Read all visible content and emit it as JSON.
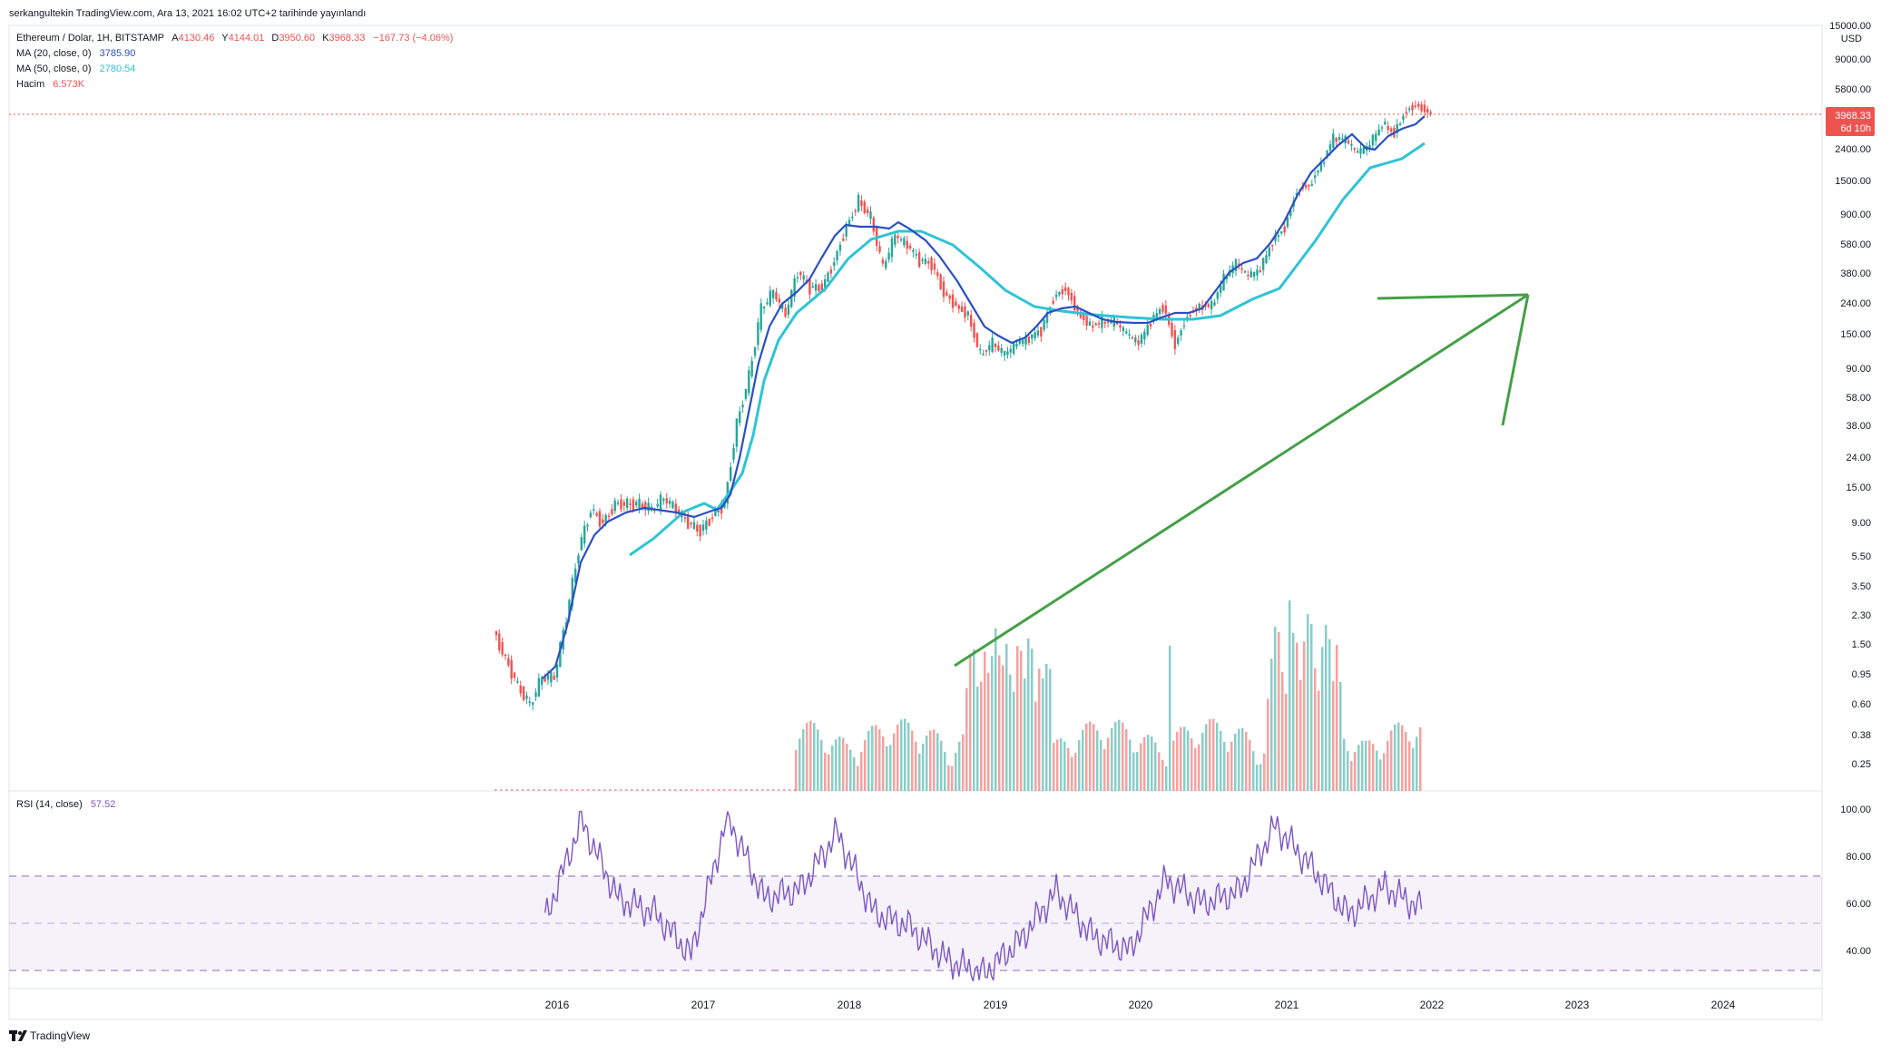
{
  "publish_line": "serkangultekin TradingView.com, Ara 13, 2021 16:02 UTC+2 tarihinde yayınlandı",
  "legend": {
    "symbol": "Ethereum / Dolar, 1H, BITSTAMP",
    "ohlc": [
      {
        "label": "A",
        "value": "4130.46"
      },
      {
        "label": "Y",
        "value": "4144.01"
      },
      {
        "label": "D",
        "value": "3950.60"
      },
      {
        "label": "K",
        "value": "3968.33"
      }
    ],
    "change": "−167.73 (−4.06%)",
    "ma20": {
      "label": "MA (20, close, 0)",
      "value": "3785.90"
    },
    "ma50": {
      "label": "MA (50, close, 0)",
      "value": "2780.54"
    },
    "volume": {
      "label": "Hacim",
      "value": "6.573K"
    }
  },
  "price_axis": {
    "currency": "USD",
    "ticks": [
      "15000.00",
      "9000.00",
      "5800.00",
      "2400.00",
      "1500.00",
      "900.00",
      "580.00",
      "380.00",
      "240.00",
      "150.00",
      "90.00",
      "58.00",
      "38.00",
      "24.00",
      "15.00",
      "9.00",
      "5.50",
      "3.50",
      "2.30",
      "1.50",
      "0.95",
      "0.60",
      "0.38",
      "0.25"
    ]
  },
  "last_price": {
    "value": "3968.33",
    "countdown": "6d 10h"
  },
  "rsi": {
    "label": "RSI (14, close)",
    "value": "57.52",
    "ticks": [
      "100.00",
      "80.00",
      "60.00",
      "40.00"
    ]
  },
  "time_axis": [
    "2016",
    "2017",
    "2018",
    "2019",
    "2020",
    "2021",
    "2022",
    "2023",
    "2024"
  ],
  "brand": "TradingView",
  "colors": {
    "up": "#26a69a",
    "down": "#ef5350",
    "ma20": "#2a4fc4",
    "ma50": "#2ec4d6",
    "rsi": "#7e57c2",
    "arrow": "#43a047",
    "last_price_bg": "#ef5350"
  },
  "chart_data": {
    "type": "candlestick",
    "scale": "log",
    "ylim": [
      0.2,
      16000
    ],
    "x_range": [
      "2015-08",
      "2024-09"
    ],
    "series": [
      {
        "name": "Ethereum / Dolar",
        "x": [
          "2015-08",
          "2015-09",
          "2015-10",
          "2015-11",
          "2015-12",
          "2016-01",
          "2016-02",
          "2016-03",
          "2016-04",
          "2016-05",
          "2016-06",
          "2016-07",
          "2016-08",
          "2016-09",
          "2016-10",
          "2016-11",
          "2016-12",
          "2017-01",
          "2017-02",
          "2017-03",
          "2017-04",
          "2017-05",
          "2017-06",
          "2017-07",
          "2017-08",
          "2017-09",
          "2017-10",
          "2017-11",
          "2017-12",
          "2018-01",
          "2018-02",
          "2018-03",
          "2018-04",
          "2018-05",
          "2018-06",
          "2018-07",
          "2018-08",
          "2018-09",
          "2018-10",
          "2018-11",
          "2018-12",
          "2019-01",
          "2019-02",
          "2019-03",
          "2019-04",
          "2019-05",
          "2019-06",
          "2019-07",
          "2019-08",
          "2019-09",
          "2019-10",
          "2019-11",
          "2019-12",
          "2020-01",
          "2020-02",
          "2020-03",
          "2020-04",
          "2020-05",
          "2020-06",
          "2020-07",
          "2020-08",
          "2020-09",
          "2020-10",
          "2020-11",
          "2020-12",
          "2021-01",
          "2021-02",
          "2021-03",
          "2021-04",
          "2021-05",
          "2021-06",
          "2021-07",
          "2021-08",
          "2021-09",
          "2021-10",
          "2021-11",
          "2021-12"
        ],
        "close": [
          1.2,
          0.8,
          0.6,
          0.9,
          0.9,
          2.2,
          6.0,
          11.0,
          9.0,
          12.0,
          12.0,
          12.0,
          11.0,
          13.0,
          11.0,
          9.0,
          8.0,
          10.0,
          12.0,
          40.0,
          80.0,
          220.0,
          280.0,
          200.0,
          380.0,
          300.0,
          300.0,
          450.0,
          750.0,
          1100.0,
          850.0,
          400.0,
          650.0,
          560.0,
          450.0,
          430.0,
          280.0,
          230.0,
          200.0,
          110.0,
          130.0,
          110.0,
          130.0,
          140.0,
          160.0,
          260.0,
          300.0,
          210.0,
          170.0,
          180.0,
          180.0,
          150.0,
          130.0,
          180.0,
          230.0,
          130.0,
          200.0,
          230.0,
          230.0,
          340.0,
          430.0,
          350.0,
          390.0,
          600.0,
          740.0,
          1300.0,
          1400.0,
          1900.0,
          2800.0,
          2700.0,
          2200.0,
          2500.0,
          3400.0,
          3000.0,
          4300.0,
          4600.0,
          3968.33
        ]
      },
      {
        "name": "MA (20, close, 0)",
        "x": [
          "2015-12",
          "2016-06",
          "2016-12",
          "2017-06",
          "2017-12",
          "2018-06",
          "2018-12",
          "2019-06",
          "2019-12",
          "2020-06",
          "2020-12",
          "2021-06",
          "2021-12"
        ],
        "values": [
          0.9,
          11,
          10,
          150,
          800,
          560,
          130,
          200,
          150,
          220,
          600,
          2200,
          3785.9
        ]
      },
      {
        "name": "MA (50, close, 0)",
        "x": [
          "2016-06",
          "2016-12",
          "2017-06",
          "2017-12",
          "2018-06",
          "2018-12",
          "2019-06",
          "2019-12",
          "2020-06",
          "2020-12",
          "2021-06",
          "2021-12"
        ],
        "values": [
          5.2,
          10,
          95,
          500,
          560,
          190,
          200,
          190,
          220,
          420,
          1500,
          2780.54
        ]
      },
      {
        "name": "Hacim",
        "type": "bar"
      },
      {
        "name": "RSI (14, close)",
        "ylim": [
          27,
          100
        ],
        "x": [
          "2015-12",
          "2016-03",
          "2016-06",
          "2016-09",
          "2016-12",
          "2017-03",
          "2017-06",
          "2017-09",
          "2017-12",
          "2018-03",
          "2018-06",
          "2018-09",
          "2018-12",
          "2019-03",
          "2019-06",
          "2019-09",
          "2019-12",
          "2020-03",
          "2020-06",
          "2020-09",
          "2020-12",
          "2021-03",
          "2021-06",
          "2021-09",
          "2021-12"
        ],
        "values": [
          53,
          95,
          62,
          56,
          38,
          97,
          62,
          66,
          90,
          56,
          50,
          36,
          30,
          44,
          65,
          46,
          40,
          70,
          60,
          65,
          93,
          75,
          55,
          67,
          57.52
        ]
      }
    ]
  }
}
